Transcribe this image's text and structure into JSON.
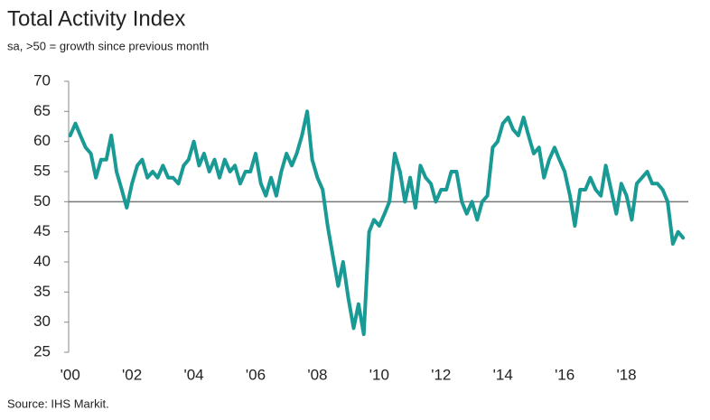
{
  "chart_data": {
    "type": "line",
    "title": "Total Activity Index",
    "subtitle": "sa, >50 = growth since previous month",
    "source": "Source: IHS Markit.",
    "x": [
      2000,
      2000.17,
      2000.33,
      2000.5,
      2000.67,
      2000.83,
      2001,
      2001.17,
      2001.33,
      2001.5,
      2001.67,
      2001.83,
      2002,
      2002.17,
      2002.33,
      2002.5,
      2002.67,
      2002.83,
      2003,
      2003.17,
      2003.33,
      2003.5,
      2003.67,
      2003.83,
      2004,
      2004.17,
      2004.33,
      2004.5,
      2004.67,
      2004.83,
      2005,
      2005.17,
      2005.33,
      2005.5,
      2005.67,
      2005.83,
      2006,
      2006.17,
      2006.33,
      2006.5,
      2006.67,
      2006.83,
      2007,
      2007.17,
      2007.33,
      2007.5,
      2007.67,
      2007.83,
      2008,
      2008.17,
      2008.33,
      2008.5,
      2008.67,
      2008.83,
      2009,
      2009.17,
      2009.33,
      2009.5,
      2009.67,
      2009.83,
      2010,
      2010.17,
      2010.33,
      2010.5,
      2010.67,
      2010.83,
      2011,
      2011.17,
      2011.33,
      2011.5,
      2011.67,
      2011.83,
      2012,
      2012.17,
      2012.33,
      2012.5,
      2012.67,
      2012.83,
      2013,
      2013.17,
      2013.33,
      2013.5,
      2013.67,
      2013.83,
      2014,
      2014.17,
      2014.33,
      2014.5,
      2014.67,
      2014.83,
      2015,
      2015.17,
      2015.33,
      2015.5,
      2015.67,
      2015.83,
      2016,
      2016.17,
      2016.33,
      2016.5,
      2016.67,
      2016.83,
      2017,
      2017.17,
      2017.33,
      2017.5,
      2017.67,
      2017.83,
      2018,
      2018.17,
      2018.33,
      2018.5,
      2018.67,
      2018.83,
      2019,
      2019.17,
      2019.33,
      2019.5,
      2019.67,
      2019.83
    ],
    "series": [
      {
        "name": "Total Activity Index",
        "color": "#1a9a94",
        "values": [
          61,
          63,
          61,
          59,
          58,
          54,
          57,
          57,
          61,
          55,
          52,
          49,
          53,
          56,
          57,
          54,
          55,
          54,
          56,
          54,
          54,
          53,
          56,
          57,
          60,
          56,
          58,
          55,
          57,
          54,
          57,
          55,
          56,
          53,
          55,
          55,
          58,
          53,
          51,
          54,
          51,
          55,
          58,
          56,
          58,
          61,
          65,
          57,
          54,
          52,
          46,
          41,
          36,
          40,
          34,
          29,
          33,
          28,
          45,
          47,
          46,
          48,
          50,
          58,
          55,
          50,
          54,
          49,
          56,
          54,
          53,
          50,
          52,
          52,
          55,
          55,
          50,
          48,
          50,
          47,
          50,
          51,
          59,
          60,
          63,
          64,
          62,
          61,
          64,
          61,
          58,
          59,
          54,
          57,
          59,
          57,
          55,
          51,
          46,
          52,
          52,
          54,
          52,
          51,
          56,
          52,
          48,
          53,
          51,
          47,
          53,
          54,
          55,
          53,
          53,
          52,
          50,
          43,
          45,
          44
        ]
      }
    ],
    "xlim": [
      1999.95,
      2020.0
    ],
    "xticks": [
      {
        "value": 2000,
        "label": "'00"
      },
      {
        "value": 2002,
        "label": "'02"
      },
      {
        "value": 2004,
        "label": "'04"
      },
      {
        "value": 2006,
        "label": "'06"
      },
      {
        "value": 2008,
        "label": "'08"
      },
      {
        "value": 2010,
        "label": "'10"
      },
      {
        "value": 2012,
        "label": "'12"
      },
      {
        "value": 2014,
        "label": "'14"
      },
      {
        "value": 2016,
        "label": "'16"
      },
      {
        "value": 2018,
        "label": "'18"
      }
    ],
    "ylim": [
      25,
      70
    ],
    "yticks": [
      25,
      30,
      35,
      40,
      45,
      50,
      55,
      60,
      65,
      70
    ],
    "reference_line": 50,
    "grid": false
  }
}
